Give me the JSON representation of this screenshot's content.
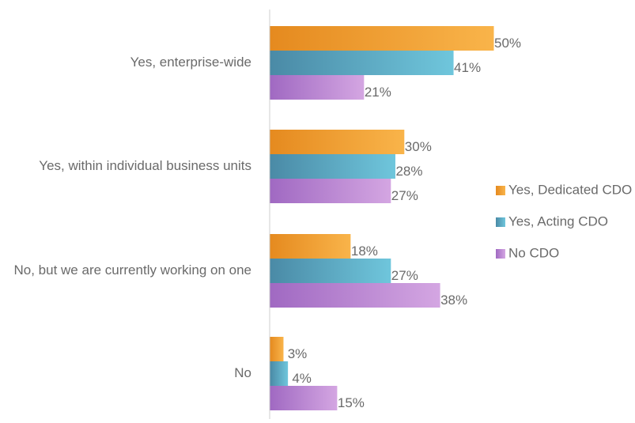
{
  "chart_data": {
    "type": "bar",
    "orientation": "horizontal",
    "categories": [
      "Yes, enterprise-wide",
      "Yes, within individual business units",
      "No, but we are currently working on one",
      "No"
    ],
    "series": [
      {
        "name": "Yes, Dedicated CDO",
        "values": [
          50,
          30,
          18,
          3
        ],
        "color_start": "#e58a1f",
        "color_end": "#f9b44a"
      },
      {
        "name": "Yes, Acting CDO",
        "values": [
          41,
          28,
          27,
          4
        ],
        "color_start": "#4a8aa6",
        "color_end": "#6fc6dc"
      },
      {
        "name": "No CDO",
        "values": [
          21,
          27,
          38,
          15
        ],
        "color_start": "#a069c2",
        "color_end": "#d4a6e2"
      }
    ],
    "value_suffix": "%",
    "xlim": [
      0,
      60
    ],
    "grid": false,
    "legend_position": "right"
  }
}
